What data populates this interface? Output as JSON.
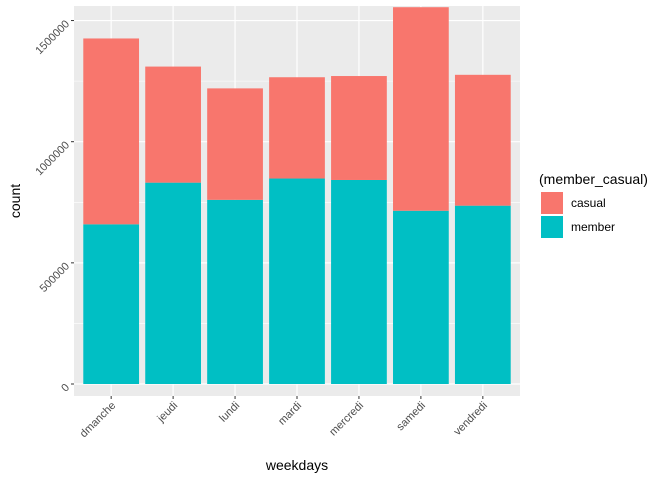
{
  "chart_data": {
    "type": "bar",
    "stacked": true,
    "categories": [
      "dmanche",
      "jeudi",
      "lundi",
      "mardi",
      "mercredi",
      "samedi",
      "vendredi"
    ],
    "series": [
      {
        "name": "casual",
        "color": "#F8766D",
        "values": [
          767000,
          479000,
          460000,
          418000,
          429000,
          840000,
          540000
        ]
      },
      {
        "name": "member",
        "color": "#00BFC4",
        "values": [
          659000,
          831000,
          760000,
          848000,
          842000,
          715000,
          736000
        ]
      }
    ],
    "xlabel": "weekdays",
    "ylabel": "count",
    "ylim": [
      0,
      1560000
    ],
    "yticks": [
      0,
      500000,
      1000000,
      1500000
    ],
    "ytick_labels": [
      "0",
      "500000",
      "1000000",
      "1500000"
    ],
    "legend": {
      "title": "(member_casual)",
      "placement": "right"
    },
    "grid": true,
    "panel_background": "#EBEBEB"
  }
}
